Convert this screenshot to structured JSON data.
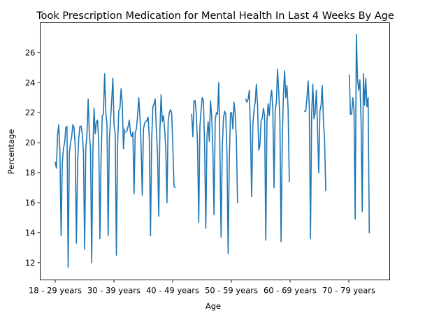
{
  "chart_data": {
    "type": "line",
    "title": "Took Prescription Medication for Mental Health In Last 4 Weeks By Age",
    "xlabel": "Age",
    "ylabel": "Percentage",
    "grid": false,
    "legend": "none",
    "ylim": [
      10.85,
      28.0
    ],
    "y_ticks": [
      12,
      14,
      16,
      18,
      20,
      22,
      24,
      26
    ],
    "x_tick_labels": [
      "18 - 29 years",
      "30 - 39 years",
      "40 - 49 years",
      "50 - 59 years",
      "60 - 69 years",
      "70 - 79 years"
    ],
    "line_color": "#1f77b4",
    "series": [
      {
        "name": "",
        "groups": [
          {
            "category": "18 - 29 years",
            "values": [
              18.7,
              18.3,
              20.5,
              21.2,
              19.4,
              13.8,
              18.6,
              19.6,
              20.0,
              21.0,
              21.1,
              11.7,
              19.3,
              20.0,
              20.4,
              21.2,
              21.0,
              19.8,
              13.3,
              18.6,
              20.3,
              21.1,
              21.1,
              20.6,
              19.4,
              12.9,
              19.6,
              20.6,
              22.9,
              20.6,
              19.6,
              12.0,
              19.4,
              22.3,
              20.6,
              21.4,
              21.5,
              20.0,
              13.6,
              19.0,
              21.8,
              21.9,
              24.6,
              22.0,
              21.2,
              13.8,
              20.2,
              21.5,
              22.8,
              24.3,
              21.2,
              20.6,
              12.5,
              19.8,
              22.1,
              22.3,
              23.6,
              22.6,
              19.6,
              20.9
            ]
          },
          {
            "category": "30 - 39 years",
            "values": [
              20.7,
              20.8,
              21.1,
              21.5,
              20.6,
              20.4,
              20.7,
              16.6,
              20.7,
              20.9,
              21.8,
              23.0,
              21.8,
              19.8,
              16.5,
              20.9,
              21.3,
              21.4,
              21.5,
              21.7,
              20.2,
              13.8,
              20.2,
              22.4,
              22.6,
              22.9,
              20.8,
              19.2,
              15.1,
              20.8,
              23.2,
              21.4,
              21.8,
              20.9,
              19.6,
              16.0,
              21.4,
              22.0,
              22.2,
              22.0,
              19.7,
              17.1,
              17.0
            ]
          },
          {
            "category": "50 - 59 years",
            "values": [
              21.9,
              20.4,
              22.8,
              22.8,
              21.8,
              19.9,
              14.7,
              21.1,
              22.2,
              23.0,
              22.8,
              19.8,
              14.3,
              20.4,
              21.4,
              20.1,
              22.8,
              21.8,
              19.6,
              15.2,
              21.5,
              22.0,
              21.9,
              24.0,
              19.6,
              13.7,
              19.6,
              21.6,
              22.1,
              21.9,
              19.2,
              12.6,
              18.9,
              22.0,
              22.0,
              20.9,
              22.7,
              21.9,
              20.2,
              16.0
            ]
          },
          {
            "category": "60 - 69 years",
            "values": [
              22.9,
              22.7,
              22.9,
              23.5,
              20.7,
              16.4,
              21.2,
              22.2,
              22.7,
              23.9,
              22.5,
              19.5,
              19.8,
              21.5,
              21.6,
              22.3,
              21.8,
              13.5,
              21.4,
              22.6,
              21.8,
              23.0,
              23.5,
              22.2,
              17.0,
              22.1,
              22.7,
              24.9,
              23.4,
              21.5,
              13.4,
              20.2,
              23.2,
              24.8,
              23.0,
              23.8,
              22.2,
              17.4
            ]
          },
          {
            "category": "70 - 79 years",
            "values": [
              22.1,
              22.1,
              23.0,
              24.1,
              22.3,
              13.6,
              21.9,
              23.9,
              21.6,
              22.0,
              23.5,
              20.9,
              18.0,
              22.1,
              22.5,
              23.8,
              21.5,
              20.1,
              16.8
            ]
          },
          {
            "category": "70 - 79 years (continued)",
            "values": [
              24.5,
              21.9,
              21.9,
              23.0,
              22.2,
              14.9,
              27.2,
              24.2,
              23.5,
              24.2,
              21.5,
              15.4,
              24.6,
              22.5,
              24.3,
              22.4,
              23.0,
              14.0
            ]
          }
        ]
      }
    ]
  }
}
